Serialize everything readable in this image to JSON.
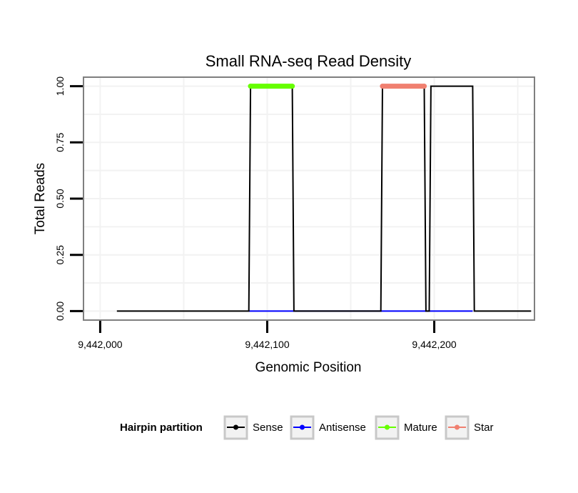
{
  "chart_data": {
    "type": "line",
    "title": "Small RNA-seq Read Density",
    "xlabel": "Genomic Position",
    "ylabel": "Total Reads",
    "xlim": [
      9441990,
      9442260
    ],
    "ylim": [
      -0.04,
      1.04
    ],
    "x_ticks": [
      9442000,
      9442100,
      9442200
    ],
    "x_tick_labels": [
      "9,442,000",
      "9,442,100",
      "9,442,200"
    ],
    "y_ticks": [
      0,
      0.25,
      0.5,
      0.75,
      1
    ],
    "y_tick_labels": [
      "0.00",
      "0.25",
      "0.50",
      "0.75",
      "1.00"
    ],
    "legend": {
      "title": "Hairpin partition",
      "placement": "bottom",
      "entries": [
        {
          "label": "Sense",
          "color": "#000000"
        },
        {
          "label": "Antisense",
          "color": "#0000ff"
        },
        {
          "label": "Mature",
          "color": "#66ff00"
        },
        {
          "label": "Star",
          "color": "#f08070"
        }
      ]
    },
    "series": [
      {
        "name": "Sense",
        "color": "#000000",
        "x": [
          9442010,
          9442089,
          9442090,
          9442115,
          9442116,
          9442168,
          9442169,
          9442194,
          9442195,
          9442197,
          9442198,
          9442223,
          9442224,
          9442258
        ],
        "y": [
          0,
          0,
          1,
          1,
          0,
          0,
          1,
          1,
          0,
          0,
          1,
          1,
          0,
          0
        ]
      },
      {
        "name": "Antisense",
        "color": "#0000ff",
        "x": [
          9442089,
          9442116,
          9442169,
          9442223
        ],
        "y": [
          0,
          0,
          0,
          0
        ]
      },
      {
        "name": "Mature",
        "color": "#66ff00",
        "x": [
          9442090,
          9442115
        ],
        "y": [
          1,
          1
        ]
      },
      {
        "name": "Star",
        "color": "#f08070",
        "x": [
          9442169,
          9442194
        ],
        "y": [
          1,
          1
        ]
      }
    ]
  }
}
